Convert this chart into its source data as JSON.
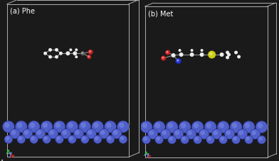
{
  "background_color": "#000000",
  "outer_bg": "#1a1a1a",
  "panel_a_label": "(a) Phe",
  "panel_b_label": "(b) Met",
  "label_color": "#ffffff",
  "label_fontsize": 7,
  "box_color": "#b0b0b0",
  "fe_color_light": "#7080e0",
  "fe_color_mid": "#5060c8",
  "fe_color_dark": "#202080",
  "fe_shadow": "#000033",
  "h_atom_color": "#e8e8e8",
  "c_atom_color": "#606060",
  "o_atom_color": "#cc2020",
  "n_atom_color": "#2030cc",
  "s_atom_color": "#cccc10",
  "bond_color": "#909090",
  "axis_color_x": "#cc2020",
  "axis_color_y": "#20cc20",
  "axis_color_z": "#8888ff",
  "fig_width": 3.92,
  "fig_height": 2.28,
  "dpi": 100
}
